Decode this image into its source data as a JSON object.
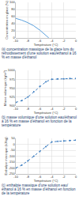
{
  "chart_data": [
    {
      "type": "line",
      "title": "ⓐ concentration massique de la glace lors du refroidissement d'une solution eau/éthanol à 16 % en masse d'éthanol",
      "x_label": "Température (°C)",
      "y_label": "Concentration en glace (%)",
      "x": [
        -10,
        -9,
        -8,
        -7,
        -6,
        -5,
        -4.5
      ],
      "values": [
        55,
        50,
        43,
        34,
        22,
        8,
        0
      ],
      "color": "#5aa0dc",
      "line_style": "solid",
      "grid": true,
      "xlim": [
        -10,
        0
      ],
      "xticks": [
        -10,
        -8,
        -6,
        -4,
        -2,
        0
      ],
      "ylim": [
        0,
        100
      ],
      "yticks": [
        0,
        20,
        40,
        60,
        80,
        100
      ]
    },
    {
      "type": "line",
      "title": "ⓑ masse volumique d'une solution eau/éthanol à 16 % en masse d'éthanol en fonction de la température",
      "x_label": "Température (°C)",
      "y_label": "Masse volumique (kg/m³)",
      "x": [
        -10,
        -9,
        -8,
        -7,
        -6,
        -5,
        -4,
        -3,
        -2,
        -1,
        0
      ],
      "values": [
        910,
        915,
        925,
        940,
        955,
        968,
        975,
        976,
        976,
        977,
        977
      ],
      "color": "#3a7cc0",
      "line_style": "dot",
      "marker": "circle",
      "grid": true,
      "xlim": [
        -10,
        0
      ],
      "xticks": [
        -10,
        -8,
        -6,
        -4,
        -2,
        0
      ],
      "ylim": [
        900,
        1000
      ],
      "yticks": [
        900,
        925,
        950,
        975,
        1000
      ]
    },
    {
      "type": "line",
      "title": "ⓒ enthalpie massique d'une solution eau/éthanol à 16 % en masse d'éthanol en fonction de la température",
      "x_label": "Température (°C)",
      "y_label": "Enthalpie massique (kJ/kg)",
      "x": [
        -10,
        -9,
        -8,
        -7,
        -6,
        -5,
        -4,
        -3,
        -2,
        -1,
        0
      ],
      "values": [
        -200,
        -175,
        -140,
        -100,
        -60,
        -20,
        20,
        25,
        28,
        32,
        35
      ],
      "color": "#3a7cc0",
      "line_style": "dot",
      "marker": "circle",
      "grid": true,
      "xlim": [
        -10,
        0
      ],
      "xticks": [
        -10,
        -8,
        -6,
        -4,
        -2,
        0
      ],
      "ylim": [
        -250,
        50
      ],
      "yticks": [
        -250,
        -200,
        -150,
        -100,
        -50,
        0,
        50
      ]
    }
  ]
}
